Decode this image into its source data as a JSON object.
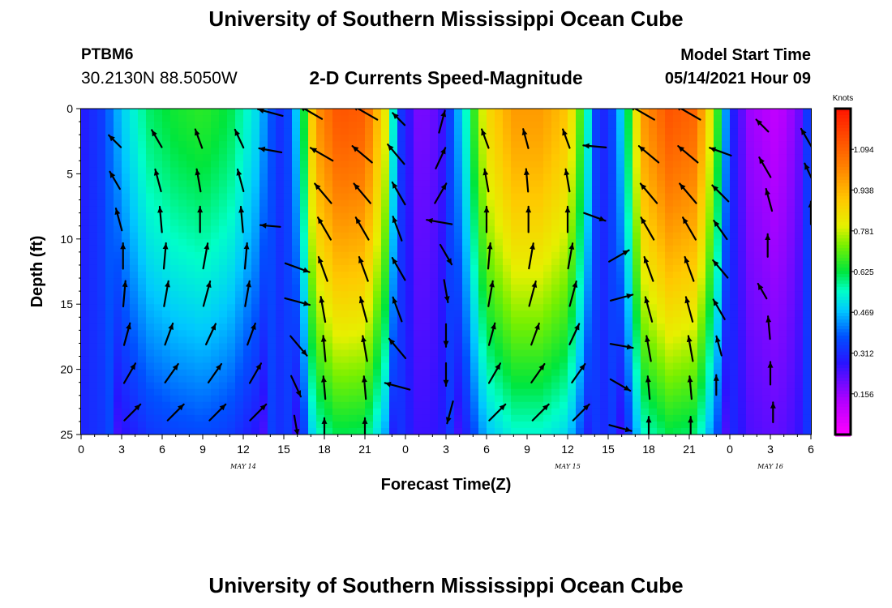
{
  "header": {
    "main_title": "University of Southern Mississippi Ocean Cube",
    "station_name": "PTBM6",
    "station_coords": "30.2130N  88.5050W",
    "plot_title": "2-D Currents Speed-Magnitude",
    "model_start_label": "Model Start Time",
    "model_start_time": "05/14/2021 Hour 09"
  },
  "footer": {
    "title": "University of Southern Mississippi Ocean Cube"
  },
  "chart_data": {
    "type": "heatmap",
    "xlabel": "Forecast Time(Z)",
    "ylabel": "Depth (ft)",
    "x_hours_range": [
      0,
      54
    ],
    "y_range": [
      0,
      25
    ],
    "y_ticks": [
      0,
      5,
      10,
      15,
      20,
      25
    ],
    "x_ticks": [
      {
        "h": 0,
        "label": "0"
      },
      {
        "h": 3,
        "label": "3"
      },
      {
        "h": 6,
        "label": "6"
      },
      {
        "h": 9,
        "label": "9"
      },
      {
        "h": 12,
        "label": "12"
      },
      {
        "h": 15,
        "label": "15"
      },
      {
        "h": 18,
        "label": "18"
      },
      {
        "h": 21,
        "label": "21"
      },
      {
        "h": 24,
        "label": "0"
      },
      {
        "h": 27,
        "label": "3"
      },
      {
        "h": 30,
        "label": "6"
      },
      {
        "h": 33,
        "label": "9"
      },
      {
        "h": 36,
        "label": "12"
      },
      {
        "h": 39,
        "label": "15"
      },
      {
        "h": 42,
        "label": "18"
      },
      {
        "h": 45,
        "label": "21"
      },
      {
        "h": 48,
        "label": "0"
      },
      {
        "h": 51,
        "label": "3"
      },
      {
        "h": 54,
        "label": "6"
      }
    ],
    "date_labels": [
      {
        "h": 12,
        "label": "MAY 14"
      },
      {
        "h": 36,
        "label": "MAY 15"
      },
      {
        "h": 51,
        "label": "MAY 16"
      }
    ],
    "colorbar": {
      "unit": "Knots",
      "min": 0.0,
      "max": 1.25,
      "ticks": [
        "0.156",
        "0.312",
        "0.469",
        "0.625",
        "0.781",
        "0.938",
        "1.094"
      ],
      "tick_values": [
        0.156,
        0.312,
        0.469,
        0.625,
        0.781,
        0.938,
        1.094
      ]
    },
    "speed_profile_surface": [
      {
        "h": 0,
        "v": 0.28
      },
      {
        "h": 1.5,
        "v": 0.34
      },
      {
        "h": 3.0,
        "v": 0.48
      },
      {
        "h": 5.0,
        "v": 0.6
      },
      {
        "h": 7.0,
        "v": 0.64
      },
      {
        "h": 9.0,
        "v": 0.66
      },
      {
        "h": 11.0,
        "v": 0.62
      },
      {
        "h": 13.0,
        "v": 0.5
      },
      {
        "h": 14.0,
        "v": 0.38
      },
      {
        "h": 15.0,
        "v": 0.3
      },
      {
        "h": 16.3,
        "v": 0.55
      },
      {
        "h": 17.3,
        "v": 0.98
      },
      {
        "h": 19.0,
        "v": 1.12
      },
      {
        "h": 21.0,
        "v": 1.1
      },
      {
        "h": 22.5,
        "v": 0.82
      },
      {
        "h": 23.5,
        "v": 0.35
      },
      {
        "h": 25.0,
        "v": 0.18
      },
      {
        "h": 26.5,
        "v": 0.22
      },
      {
        "h": 28.5,
        "v": 0.55
      },
      {
        "h": 30.0,
        "v": 0.85
      },
      {
        "h": 32.0,
        "v": 0.98
      },
      {
        "h": 34.0,
        "v": 0.98
      },
      {
        "h": 36.0,
        "v": 0.9
      },
      {
        "h": 37.3,
        "v": 0.6
      },
      {
        "h": 38.2,
        "v": 0.32
      },
      {
        "h": 39.0,
        "v": 0.3
      },
      {
        "h": 40.3,
        "v": 0.55
      },
      {
        "h": 41.5,
        "v": 0.98
      },
      {
        "h": 43.5,
        "v": 1.12
      },
      {
        "h": 45.5,
        "v": 1.08
      },
      {
        "h": 47.0,
        "v": 0.7
      },
      {
        "h": 48.0,
        "v": 0.32
      },
      {
        "h": 49.5,
        "v": 0.15
      },
      {
        "h": 51.5,
        "v": 0.1
      },
      {
        "h": 53.0,
        "v": 0.18
      },
      {
        "h": 54.0,
        "v": 0.4
      }
    ],
    "vectors": [
      {
        "h": 2.5,
        "d": 2.5,
        "dir": 315,
        "len": 0.3
      },
      {
        "h": 2.5,
        "d": 5.5,
        "dir": 330,
        "len": 0.35
      },
      {
        "h": 2.8,
        "d": 8.5,
        "dir": 345,
        "len": 0.4
      },
      {
        "h": 3.1,
        "d": 11.3,
        "dir": 0,
        "len": 0.45
      },
      {
        "h": 3.2,
        "d": 14.2,
        "dir": 5,
        "len": 0.45
      },
      {
        "h": 3.4,
        "d": 17.3,
        "dir": 15,
        "len": 0.4
      },
      {
        "h": 3.6,
        "d": 20.3,
        "dir": 30,
        "len": 0.4
      },
      {
        "h": 3.8,
        "d": 23.3,
        "dir": 45,
        "len": 0.4
      },
      {
        "h": 5.6,
        "d": 2.3,
        "dir": 330,
        "len": 0.35
      },
      {
        "h": 5.7,
        "d": 5.5,
        "dir": 345,
        "len": 0.4
      },
      {
        "h": 5.9,
        "d": 8.5,
        "dir": 355,
        "len": 0.45
      },
      {
        "h": 6.2,
        "d": 11.3,
        "dir": 5,
        "len": 0.45
      },
      {
        "h": 6.3,
        "d": 14.2,
        "dir": 10,
        "len": 0.45
      },
      {
        "h": 6.5,
        "d": 17.3,
        "dir": 20,
        "len": 0.4
      },
      {
        "h": 6.7,
        "d": 20.3,
        "dir": 35,
        "len": 0.4
      },
      {
        "h": 7.0,
        "d": 23.3,
        "dir": 45,
        "len": 0.4
      },
      {
        "h": 8.7,
        "d": 2.3,
        "dir": 340,
        "len": 0.35
      },
      {
        "h": 8.7,
        "d": 5.5,
        "dir": 350,
        "len": 0.4
      },
      {
        "h": 8.8,
        "d": 8.5,
        "dir": 0,
        "len": 0.45
      },
      {
        "h": 9.2,
        "d": 11.3,
        "dir": 10,
        "len": 0.45
      },
      {
        "h": 9.3,
        "d": 14.2,
        "dir": 15,
        "len": 0.45
      },
      {
        "h": 9.6,
        "d": 17.3,
        "dir": 25,
        "len": 0.4
      },
      {
        "h": 9.9,
        "d": 20.3,
        "dir": 35,
        "len": 0.4
      },
      {
        "h": 10.1,
        "d": 23.3,
        "dir": 45,
        "len": 0.4
      },
      {
        "h": 11.7,
        "d": 2.3,
        "dir": 335,
        "len": 0.35
      },
      {
        "h": 11.8,
        "d": 5.5,
        "dir": 345,
        "len": 0.4
      },
      {
        "h": 11.9,
        "d": 8.5,
        "dir": 355,
        "len": 0.45
      },
      {
        "h": 12.2,
        "d": 11.3,
        "dir": 5,
        "len": 0.45
      },
      {
        "h": 12.3,
        "d": 14.2,
        "dir": 10,
        "len": 0.45
      },
      {
        "h": 12.6,
        "d": 17.3,
        "dir": 20,
        "len": 0.4
      },
      {
        "h": 12.9,
        "d": 20.3,
        "dir": 30,
        "len": 0.4
      },
      {
        "h": 13.1,
        "d": 23.3,
        "dir": 45,
        "len": 0.4
      },
      {
        "h": 14.0,
        "d": 0.3,
        "dir": 285,
        "len": 0.45
      },
      {
        "h": 14.0,
        "d": 3.2,
        "dir": 280,
        "len": 0.4
      },
      {
        "h": 14.0,
        "d": 9.0,
        "dir": 275,
        "len": 0.35
      },
      {
        "h": 16.0,
        "d": 12.2,
        "dir": 110,
        "len": 0.45
      },
      {
        "h": 16.0,
        "d": 14.8,
        "dir": 105,
        "len": 0.45
      },
      {
        "h": 16.1,
        "d": 18.2,
        "dir": 140,
        "len": 0.45
      },
      {
        "h": 15.9,
        "d": 21.3,
        "dir": 155,
        "len": 0.4
      },
      {
        "h": 15.9,
        "d": 24.3,
        "dir": 170,
        "len": 0.35
      },
      {
        "h": 17.0,
        "d": 0.3,
        "dir": 300,
        "len": 0.45
      },
      {
        "h": 17.8,
        "d": 3.5,
        "dir": 300,
        "len": 0.45
      },
      {
        "h": 17.9,
        "d": 6.5,
        "dir": 320,
        "len": 0.45
      },
      {
        "h": 18.0,
        "d": 9.2,
        "dir": 330,
        "len": 0.45
      },
      {
        "h": 17.9,
        "d": 12.3,
        "dir": 340,
        "len": 0.45
      },
      {
        "h": 17.9,
        "d": 15.4,
        "dir": 350,
        "len": 0.45
      },
      {
        "h": 18.0,
        "d": 18.4,
        "dir": 355,
        "len": 0.45
      },
      {
        "h": 18.0,
        "d": 21.4,
        "dir": 355,
        "len": 0.4
      },
      {
        "h": 18.0,
        "d": 24.5,
        "dir": 0,
        "len": 0.35
      },
      {
        "h": 21.0,
        "d": 0.3,
        "dir": 300,
        "len": 0.5
      },
      {
        "h": 20.8,
        "d": 3.5,
        "dir": 310,
        "len": 0.45
      },
      {
        "h": 20.8,
        "d": 6.5,
        "dir": 320,
        "len": 0.45
      },
      {
        "h": 20.8,
        "d": 9.2,
        "dir": 330,
        "len": 0.45
      },
      {
        "h": 20.9,
        "d": 12.3,
        "dir": 340,
        "len": 0.45
      },
      {
        "h": 20.9,
        "d": 15.4,
        "dir": 345,
        "len": 0.45
      },
      {
        "h": 21.0,
        "d": 18.4,
        "dir": 350,
        "len": 0.45
      },
      {
        "h": 21.0,
        "d": 21.4,
        "dir": 355,
        "len": 0.4
      },
      {
        "h": 21.0,
        "d": 24.5,
        "dir": 0,
        "len": 0.35
      },
      {
        "h": 23.5,
        "d": 0.8,
        "dir": 315,
        "len": 0.3
      },
      {
        "h": 23.3,
        "d": 3.5,
        "dir": 320,
        "len": 0.45
      },
      {
        "h": 23.5,
        "d": 6.5,
        "dir": 330,
        "len": 0.45
      },
      {
        "h": 23.4,
        "d": 9.2,
        "dir": 340,
        "len": 0.45
      },
      {
        "h": 23.5,
        "d": 12.3,
        "dir": 330,
        "len": 0.45
      },
      {
        "h": 23.4,
        "d": 15.4,
        "dir": 340,
        "len": 0.45
      },
      {
        "h": 23.4,
        "d": 18.4,
        "dir": 320,
        "len": 0.45
      },
      {
        "h": 23.4,
        "d": 21.3,
        "dir": 285,
        "len": 0.45
      },
      {
        "h": 26.7,
        "d": 1.0,
        "dir": 15,
        "len": 0.4
      },
      {
        "h": 26.6,
        "d": 3.8,
        "dir": 25,
        "len": 0.4
      },
      {
        "h": 26.6,
        "d": 6.5,
        "dir": 30,
        "len": 0.4
      },
      {
        "h": 26.5,
        "d": 8.7,
        "dir": 280,
        "len": 0.45
      },
      {
        "h": 27.0,
        "d": 11.2,
        "dir": 150,
        "len": 0.4
      },
      {
        "h": 27.0,
        "d": 14.0,
        "dir": 170,
        "len": 0.4
      },
      {
        "h": 27.0,
        "d": 17.4,
        "dir": 180,
        "len": 0.4
      },
      {
        "h": 27.0,
        "d": 20.4,
        "dir": 180,
        "len": 0.4
      },
      {
        "h": 27.3,
        "d": 23.3,
        "dir": 195,
        "len": 0.4
      },
      {
        "h": 29.9,
        "d": 2.3,
        "dir": 340,
        "len": 0.35
      },
      {
        "h": 30.0,
        "d": 5.5,
        "dir": 350,
        "len": 0.4
      },
      {
        "h": 30.0,
        "d": 8.5,
        "dir": 0,
        "len": 0.45
      },
      {
        "h": 30.2,
        "d": 11.3,
        "dir": 5,
        "len": 0.45
      },
      {
        "h": 30.3,
        "d": 14.2,
        "dir": 10,
        "len": 0.45
      },
      {
        "h": 30.4,
        "d": 17.3,
        "dir": 15,
        "len": 0.4
      },
      {
        "h": 30.6,
        "d": 20.3,
        "dir": 30,
        "len": 0.4
      },
      {
        "h": 30.8,
        "d": 23.3,
        "dir": 45,
        "len": 0.4
      },
      {
        "h": 32.9,
        "d": 2.3,
        "dir": 345,
        "len": 0.35
      },
      {
        "h": 33.0,
        "d": 5.5,
        "dir": 355,
        "len": 0.4
      },
      {
        "h": 33.1,
        "d": 8.5,
        "dir": 0,
        "len": 0.45
      },
      {
        "h": 33.3,
        "d": 11.3,
        "dir": 10,
        "len": 0.45
      },
      {
        "h": 33.4,
        "d": 14.2,
        "dir": 15,
        "len": 0.45
      },
      {
        "h": 33.6,
        "d": 17.3,
        "dir": 20,
        "len": 0.4
      },
      {
        "h": 33.8,
        "d": 20.3,
        "dir": 35,
        "len": 0.4
      },
      {
        "h": 34.0,
        "d": 23.3,
        "dir": 45,
        "len": 0.4
      },
      {
        "h": 35.9,
        "d": 2.3,
        "dir": 340,
        "len": 0.35
      },
      {
        "h": 36.0,
        "d": 5.5,
        "dir": 350,
        "len": 0.4
      },
      {
        "h": 36.0,
        "d": 8.5,
        "dir": 0,
        "len": 0.45
      },
      {
        "h": 36.2,
        "d": 11.3,
        "dir": 10,
        "len": 0.45
      },
      {
        "h": 36.4,
        "d": 14.2,
        "dir": 15,
        "len": 0.45
      },
      {
        "h": 36.5,
        "d": 17.3,
        "dir": 25,
        "len": 0.4
      },
      {
        "h": 36.8,
        "d": 20.3,
        "dir": 35,
        "len": 0.4
      },
      {
        "h": 37.0,
        "d": 23.3,
        "dir": 45,
        "len": 0.4
      },
      {
        "h": 38.0,
        "d": 2.9,
        "dir": 275,
        "len": 0.4
      },
      {
        "h": 38.0,
        "d": 8.3,
        "dir": 110,
        "len": 0.4
      },
      {
        "h": 39.8,
        "d": 11.3,
        "dir": 60,
        "len": 0.4
      },
      {
        "h": 40.0,
        "d": 14.5,
        "dir": 75,
        "len": 0.4
      },
      {
        "h": 40.0,
        "d": 18.2,
        "dir": 100,
        "len": 0.4
      },
      {
        "h": 39.9,
        "d": 21.2,
        "dir": 120,
        "len": 0.4
      },
      {
        "h": 39.9,
        "d": 24.5,
        "dir": 105,
        "len": 0.4
      },
      {
        "h": 41.5,
        "d": 0.3,
        "dir": 300,
        "len": 0.5
      },
      {
        "h": 42.0,
        "d": 3.5,
        "dir": 310,
        "len": 0.45
      },
      {
        "h": 42.0,
        "d": 6.5,
        "dir": 320,
        "len": 0.45
      },
      {
        "h": 41.9,
        "d": 9.2,
        "dir": 330,
        "len": 0.45
      },
      {
        "h": 42.0,
        "d": 12.3,
        "dir": 340,
        "len": 0.45
      },
      {
        "h": 42.0,
        "d": 15.4,
        "dir": 345,
        "len": 0.45
      },
      {
        "h": 42.0,
        "d": 18.4,
        "dir": 350,
        "len": 0.45
      },
      {
        "h": 42.0,
        "d": 21.4,
        "dir": 355,
        "len": 0.4
      },
      {
        "h": 42.0,
        "d": 24.4,
        "dir": 0,
        "len": 0.35
      },
      {
        "h": 44.9,
        "d": 0.3,
        "dir": 300,
        "len": 0.5
      },
      {
        "h": 44.9,
        "d": 3.5,
        "dir": 310,
        "len": 0.45
      },
      {
        "h": 44.9,
        "d": 6.5,
        "dir": 320,
        "len": 0.45
      },
      {
        "h": 45.0,
        "d": 9.2,
        "dir": 330,
        "len": 0.45
      },
      {
        "h": 45.0,
        "d": 12.3,
        "dir": 340,
        "len": 0.45
      },
      {
        "h": 45.0,
        "d": 15.4,
        "dir": 345,
        "len": 0.45
      },
      {
        "h": 45.1,
        "d": 18.4,
        "dir": 350,
        "len": 0.45
      },
      {
        "h": 45.1,
        "d": 21.4,
        "dir": 355,
        "len": 0.4
      },
      {
        "h": 45.1,
        "d": 24.4,
        "dir": 0,
        "len": 0.35
      },
      {
        "h": 47.3,
        "d": 3.3,
        "dir": 290,
        "len": 0.4
      },
      {
        "h": 47.3,
        "d": 6.5,
        "dir": 315,
        "len": 0.4
      },
      {
        "h": 47.3,
        "d": 9.3,
        "dir": 325,
        "len": 0.4
      },
      {
        "h": 47.3,
        "d": 12.3,
        "dir": 320,
        "len": 0.4
      },
      {
        "h": 47.2,
        "d": 15.4,
        "dir": 330,
        "len": 0.4
      },
      {
        "h": 47.2,
        "d": 18.2,
        "dir": 345,
        "len": 0.35
      },
      {
        "h": 47.0,
        "d": 21.2,
        "dir": 0,
        "len": 0.35
      },
      {
        "h": 50.4,
        "d": 1.3,
        "dir": 315,
        "len": 0.3
      },
      {
        "h": 50.6,
        "d": 4.5,
        "dir": 330,
        "len": 0.4
      },
      {
        "h": 50.9,
        "d": 7.0,
        "dir": 345,
        "len": 0.4
      },
      {
        "h": 50.8,
        "d": 10.5,
        "dir": 0,
        "len": 0.4
      },
      {
        "h": 50.4,
        "d": 14.0,
        "dir": 330,
        "len": 0.3
      },
      {
        "h": 50.9,
        "d": 16.8,
        "dir": 355,
        "len": 0.4
      },
      {
        "h": 51.0,
        "d": 20.3,
        "dir": 0,
        "len": 0.4
      },
      {
        "h": 51.2,
        "d": 23.3,
        "dir": 0,
        "len": 0.35
      },
      {
        "h": 53.7,
        "d": 2.3,
        "dir": 330,
        "len": 0.4
      },
      {
        "h": 53.9,
        "d": 5.0,
        "dir": 335,
        "len": 0.4
      },
      {
        "h": 54.0,
        "d": 8.0,
        "dir": 0,
        "len": 0.4
      }
    ]
  }
}
